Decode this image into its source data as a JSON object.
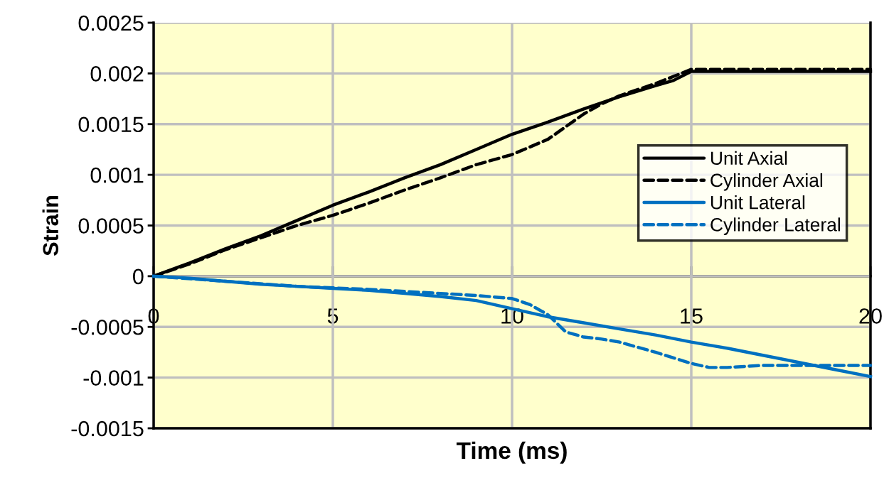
{
  "chart_data": {
    "type": "line",
    "xlabel": "Time (ms)",
    "ylabel": "Strain",
    "xlim": [
      0,
      20
    ],
    "xticks": [
      0,
      5,
      10,
      15,
      20
    ],
    "ylim": [
      -0.0015,
      0.0025
    ],
    "yticks": [
      -0.0015,
      -0.001,
      -0.0005,
      0,
      0.0005,
      0.001,
      0.0015,
      0.002,
      0.0025
    ],
    "grid": true,
    "legend": "right",
    "marker": "none",
    "series": [
      {
        "name": "Unit Axial",
        "color": "#000000",
        "line_style": "solid",
        "x": [
          0,
          1,
          2,
          3,
          4,
          5,
          6,
          7,
          8,
          9,
          10,
          11,
          12,
          13,
          14,
          14.5,
          15,
          16,
          17,
          18,
          19,
          20
        ],
        "values": [
          0,
          0.00013,
          0.00027,
          0.0004,
          0.00055,
          0.0007,
          0.00083,
          0.00097,
          0.0011,
          0.00125,
          0.0014,
          0.00152,
          0.00165,
          0.00177,
          0.00188,
          0.00193,
          0.00202,
          0.00202,
          0.00202,
          0.00202,
          0.00202,
          0.00202
        ]
      },
      {
        "name": "Cylinder Axial",
        "color": "#000000",
        "line_style": "dashed",
        "x": [
          0,
          1,
          2,
          3,
          4,
          5,
          6,
          7,
          8,
          9,
          10,
          11,
          12,
          12.5,
          13,
          14,
          15,
          16,
          17,
          18,
          19,
          20
        ],
        "values": [
          0,
          0.00012,
          0.00026,
          0.00038,
          0.0005,
          0.0006,
          0.00072,
          0.00085,
          0.00097,
          0.0011,
          0.0012,
          0.00135,
          0.0016,
          0.0017,
          0.00178,
          0.0019,
          0.00204,
          0.00204,
          0.00204,
          0.00204,
          0.00204,
          0.00204
        ]
      },
      {
        "name": "Unit Lateral",
        "color": "#0070c0",
        "line_style": "solid",
        "x": [
          0,
          1,
          2,
          3,
          4,
          5,
          6,
          7,
          8,
          9,
          10,
          11,
          12,
          13,
          14,
          15,
          16,
          17,
          18,
          19,
          20
        ],
        "values": [
          0,
          -2e-05,
          -5e-05,
          -8e-05,
          -0.0001,
          -0.00012,
          -0.00014,
          -0.00017,
          -0.0002,
          -0.00024,
          -0.00032,
          -0.0004,
          -0.00046,
          -0.00052,
          -0.00058,
          -0.00065,
          -0.00071,
          -0.00078,
          -0.00085,
          -0.00092,
          -0.00099
        ]
      },
      {
        "name": "Cylinder Lateral",
        "color": "#0070c0",
        "line_style": "dashed",
        "x": [
          0,
          2,
          4,
          6,
          8,
          9,
          10,
          10.5,
          11,
          11.5,
          12,
          12.5,
          13,
          14,
          15,
          15.5,
          16,
          17,
          18,
          19,
          20
        ],
        "values": [
          0,
          -5e-05,
          -0.0001,
          -0.00013,
          -0.00017,
          -0.00019,
          -0.00022,
          -0.00028,
          -0.00038,
          -0.00055,
          -0.0006,
          -0.00062,
          -0.00065,
          -0.00075,
          -0.00086,
          -0.0009,
          -0.0009,
          -0.00088,
          -0.00088,
          -0.00088,
          -0.00088
        ]
      }
    ]
  }
}
